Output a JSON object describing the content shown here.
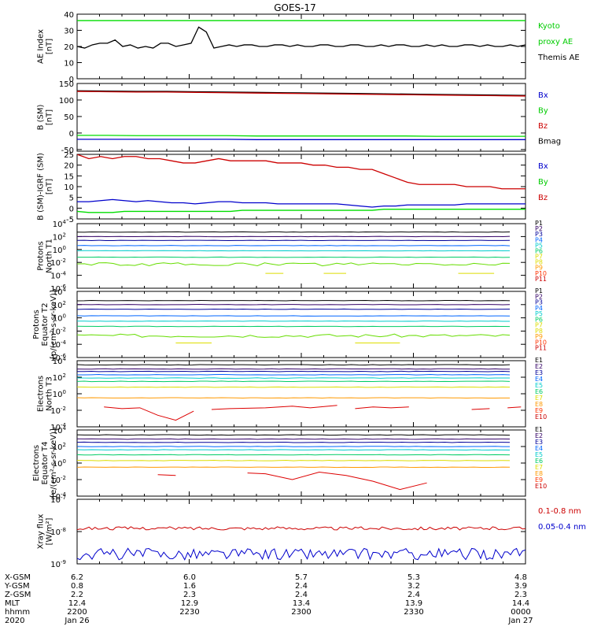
{
  "title": "GOES-17",
  "colors": {
    "black": "#000000",
    "green": "#00dd00",
    "red": "#cc0000",
    "blue": "#0000cc",
    "ch_P1": "#000000",
    "ch_P2": "#330066",
    "ch_P3": "#000099",
    "ch_P4": "#0066ff",
    "ch_P5": "#00cccc",
    "ch_P6": "#00cc66",
    "ch_P7": "#66dd00",
    "ch_P8": "#dddd00",
    "ch_P9": "#ff9900",
    "ch_P10": "#ff3300",
    "ch_P11": "#cc0000"
  },
  "chart_data": [
    {
      "type": "line",
      "ylabel": "AE Index\n[nT]",
      "ylim": [
        0,
        40
      ],
      "yticks": [
        "0",
        "10",
        "20",
        "30",
        "40"
      ],
      "legend": [
        {
          "text": "Kyoto",
          "color": "#00cc00"
        },
        {
          "text": "proxy AE",
          "color": "#00cc00"
        },
        {
          "text": "Themis AE",
          "color": "#000000"
        }
      ],
      "series": [
        {
          "name": "Kyoto proxy AE",
          "color": "#00dd00",
          "values": [
            36,
            36
          ]
        },
        {
          "name": "Themis AE",
          "color": "#000000",
          "values": [
            20,
            19,
            21,
            22,
            22,
            24,
            20,
            21,
            19,
            20,
            19,
            22,
            22,
            20,
            21,
            22,
            32,
            29,
            19,
            20,
            21,
            20,
            21,
            21,
            20,
            20,
            21,
            21,
            20,
            21,
            20,
            20,
            21,
            21,
            20,
            20,
            21,
            21,
            20,
            20,
            21,
            20,
            21,
            21,
            20,
            20,
            21,
            20,
            21,
            20,
            20,
            21,
            21,
            20,
            21,
            20,
            20,
            21,
            20,
            21
          ]
        }
      ]
    },
    {
      "type": "line",
      "ylabel": "B (SM)\n[nT]",
      "ylim": [
        -55,
        150
      ],
      "yticks": [
        "-50",
        "0",
        "50",
        "100",
        "150"
      ],
      "legend": [
        {
          "text": "Bx",
          "color": "#0000cc"
        },
        {
          "text": "By",
          "color": "#00cc00"
        },
        {
          "text": "Bz",
          "color": "#cc0000"
        },
        {
          "text": "Bmag",
          "color": "#000000"
        }
      ],
      "series": [
        {
          "name": "Bmag",
          "color": "#000000",
          "values": [
            128,
            127,
            126,
            126,
            125,
            124,
            123,
            122,
            121,
            120,
            119,
            118,
            117,
            116,
            115,
            114
          ]
        },
        {
          "name": "Bz",
          "color": "#cc0000",
          "values": [
            126,
            125,
            124,
            124,
            123,
            122,
            121,
            120,
            119,
            118,
            117,
            116,
            115,
            114,
            113,
            112
          ]
        },
        {
          "name": "By",
          "color": "#00dd00",
          "values": [
            -7,
            -7,
            -8,
            -8,
            -8,
            -8,
            -9,
            -9,
            -9,
            -9,
            -9,
            -9,
            -10,
            -10,
            -10,
            -10
          ]
        },
        {
          "name": "Bx",
          "color": "#0000cc",
          "values": [
            -19,
            -19,
            -19,
            -19,
            -19,
            -19,
            -20,
            -20,
            -20,
            -20,
            -20,
            -20,
            -20,
            -20,
            -20,
            -20
          ]
        }
      ]
    },
    {
      "type": "line",
      "ylabel": "B (SM)-IGRF (SM)\n[nT]",
      "ylim": [
        -5,
        25
      ],
      "yticks": [
        "-5",
        "0",
        "5",
        "10",
        "15",
        "20",
        "25"
      ],
      "legend": [
        {
          "text": "Bx",
          "color": "#0000cc"
        },
        {
          "text": "By",
          "color": "#00cc00"
        },
        {
          "text": "Bz",
          "color": "#cc0000"
        }
      ],
      "series": [
        {
          "name": "Bz",
          "color": "#cc0000",
          "values": [
            25,
            23,
            24,
            23,
            24,
            24,
            23,
            23,
            22,
            21,
            21,
            22,
            23,
            22,
            22,
            22,
            22,
            21,
            21,
            21,
            20,
            20,
            19,
            19,
            18,
            18,
            16,
            14,
            12,
            11,
            11,
            11,
            11,
            10,
            10,
            10,
            9,
            9,
            9
          ]
        },
        {
          "name": "Bx",
          "color": "#0000cc",
          "values": [
            3,
            3,
            3.5,
            4,
            3.5,
            3,
            3.5,
            3,
            2.5,
            2.5,
            2,
            2.5,
            3,
            3,
            2.5,
            2.5,
            2.5,
            2,
            2,
            2,
            2,
            2,
            2,
            1.5,
            1,
            0.5,
            1,
            1,
            1.5,
            1.5,
            1.5,
            1.5,
            1.5,
            2,
            2,
            2,
            2,
            2,
            2
          ]
        },
        {
          "name": "By",
          "color": "#00dd00",
          "values": [
            -1.5,
            -2,
            -2,
            -2,
            -1.5,
            -1.5,
            -1.5,
            -1.5,
            -1.5,
            -1.5,
            -1.5,
            -1.5,
            -1.5,
            -1.5,
            -1,
            -1,
            -1,
            -1,
            -1,
            -1,
            -1,
            -1,
            -1,
            -1,
            -1,
            -1,
            -0.5,
            -0.5,
            -0.5,
            -0.5,
            -0.5,
            -0.5,
            -0.5,
            -0.5,
            -0.5,
            -0.5,
            -0.5,
            -0.5,
            -0.5
          ]
        }
      ]
    },
    {
      "type": "line",
      "log": true,
      "ylabel": "Protons\nNorth T1",
      "ylim": [
        -6,
        4
      ],
      "yticks": [
        {
          "b": "10",
          "e": "4"
        },
        {
          "b": "10",
          "e": "2"
        },
        {
          "b": "10",
          "e": "0"
        },
        {
          "b": "10",
          "e": "-2"
        },
        {
          "b": "10",
          "e": "-4"
        },
        {
          "b": "10",
          "e": "-6"
        }
      ],
      "legend": [
        {
          "text": "P1",
          "color": "#000000"
        },
        {
          "text": "P2",
          "color": "#330066"
        },
        {
          "text": "P3",
          "color": "#000099"
        },
        {
          "text": "P4",
          "color": "#0066ff"
        },
        {
          "text": "P5",
          "color": "#00cccc"
        },
        {
          "text": "P6",
          "color": "#00cc66"
        },
        {
          "text": "P7",
          "color": "#dddd00"
        },
        {
          "text": "P8",
          "color": "#dddd00"
        },
        {
          "text": "P9",
          "color": "#ff9900"
        },
        {
          "text": "P10",
          "color": "#ff3300"
        },
        {
          "text": "P11",
          "color": "#cc0000"
        }
      ],
      "levels": [
        {
          "name": "P1",
          "color": "#000000",
          "value": 2.7
        },
        {
          "name": "P2",
          "color": "#330066",
          "value": 2.0
        },
        {
          "name": "P3",
          "color": "#000099",
          "value": 1.4
        },
        {
          "name": "P4",
          "color": "#0066ff",
          "value": 0.6
        },
        {
          "name": "P5",
          "color": "#00cccc",
          "value": -0.2
        },
        {
          "name": "P6",
          "color": "#00cc66",
          "value": -1.2
        },
        {
          "name": "P7",
          "color": "#66dd00",
          "value": -2.3,
          "jitter": true
        },
        {
          "name": "P8",
          "color": "#dddd00",
          "value": -3.7,
          "segments": [
            [
              0.42,
              0.46
            ],
            [
              0.55,
              0.6
            ],
            [
              0.85,
              0.93
            ]
          ]
        }
      ]
    },
    {
      "type": "line",
      "log": true,
      "ylabel": "Protons\nEquator T2\n[p/(cm²-s-sr-keV)]",
      "ylim": [
        -6,
        4
      ],
      "yticks": [
        {
          "b": "10",
          "e": "4"
        },
        {
          "b": "10",
          "e": "2"
        },
        {
          "b": "10",
          "e": "0"
        },
        {
          "b": "10",
          "e": "-2"
        },
        {
          "b": "10",
          "e": "-4"
        },
        {
          "b": "10",
          "e": "-6"
        }
      ],
      "legend": [
        {
          "text": "P1",
          "color": "#000000"
        },
        {
          "text": "P2",
          "color": "#330066"
        },
        {
          "text": "P3",
          "color": "#000099"
        },
        {
          "text": "P4",
          "color": "#0066ff"
        },
        {
          "text": "P5",
          "color": "#00cccc"
        },
        {
          "text": "P6",
          "color": "#00cc66"
        },
        {
          "text": "P7",
          "color": "#dddd00"
        },
        {
          "text": "P8",
          "color": "#dddd00"
        },
        {
          "text": "P9",
          "color": "#ff9900"
        },
        {
          "text": "P10",
          "color": "#ff3300"
        },
        {
          "text": "P11",
          "color": "#cc0000"
        }
      ],
      "levels": [
        {
          "name": "P1",
          "color": "#000000",
          "value": 2.6
        },
        {
          "name": "P2",
          "color": "#330066",
          "value": 2.0
        },
        {
          "name": "P3",
          "color": "#000099",
          "value": 1.3
        },
        {
          "name": "P4",
          "color": "#0066ff",
          "value": 0.3
        },
        {
          "name": "P5",
          "color": "#00cccc",
          "value": -0.5
        },
        {
          "name": "P6",
          "color": "#00cc66",
          "value": -1.3
        },
        {
          "name": "P7",
          "color": "#66dd00",
          "value": -2.7,
          "jitter": true
        },
        {
          "name": "P8",
          "color": "#dddd00",
          "value": -3.8,
          "segments": [
            [
              0.22,
              0.3
            ],
            [
              0.62,
              0.72
            ]
          ]
        }
      ]
    },
    {
      "type": "line",
      "log": true,
      "ylabel": "Electrons\nNorth T3",
      "ylim": [
        -4,
        4
      ],
      "yticks": [
        {
          "b": "10",
          "e": "4"
        },
        {
          "b": "10",
          "e": "2"
        },
        {
          "b": "10",
          "e": "0"
        },
        {
          "b": "10",
          "e": "-2"
        },
        {
          "b": "10",
          "e": "-4"
        }
      ],
      "legend": [
        {
          "text": "E1",
          "color": "#000000"
        },
        {
          "text": "E2",
          "color": "#330066"
        },
        {
          "text": "E3",
          "color": "#000099"
        },
        {
          "text": "E4",
          "color": "#0066ff"
        },
        {
          "text": "E5",
          "color": "#00cccc"
        },
        {
          "text": "E6",
          "color": "#00cc66"
        },
        {
          "text": "E7",
          "color": "#dddd00"
        },
        {
          "text": "E8",
          "color": "#ff9900"
        },
        {
          "text": "E9",
          "color": "#ff3300"
        },
        {
          "text": "E10",
          "color": "#cc0000"
        }
      ],
      "levels": [
        {
          "name": "E1",
          "color": "#000000",
          "value": 3.5
        },
        {
          "name": "E2",
          "color": "#330066",
          "value": 3.0
        },
        {
          "name": "E3",
          "color": "#000099",
          "value": 2.7
        },
        {
          "name": "E4",
          "color": "#0066ff",
          "value": 2.3
        },
        {
          "name": "E5",
          "color": "#00cccc",
          "value": 1.9
        },
        {
          "name": "E6",
          "color": "#00cc66",
          "value": 1.5
        },
        {
          "name": "E7",
          "color": "#dddd00",
          "value": 0.8
        },
        {
          "name": "E8",
          "color": "#ff9900",
          "value": -0.5
        }
      ],
      "red_trace": [
        [
          0.06,
          -1.6
        ],
        [
          0.1,
          -1.8
        ],
        [
          0.14,
          -1.7
        ],
        [
          0.18,
          -2.6
        ],
        [
          0.22,
          -3.2
        ],
        [
          0.26,
          -2.1
        ],
        null,
        [
          0.3,
          -1.9
        ],
        [
          0.34,
          -1.8
        ],
        [
          0.42,
          -1.7
        ],
        [
          0.48,
          -1.5
        ],
        [
          0.52,
          -1.7
        ],
        [
          0.58,
          -1.4
        ],
        null,
        [
          0.62,
          -1.8
        ],
        [
          0.66,
          -1.6
        ],
        [
          0.7,
          -1.7
        ],
        [
          0.74,
          -1.6
        ],
        null,
        [
          0.88,
          -1.9
        ],
        [
          0.92,
          -1.8
        ],
        null,
        [
          0.96,
          -1.7
        ],
        [
          0.99,
          -1.6
        ]
      ]
    },
    {
      "type": "line",
      "log": true,
      "ylabel": "Electrons\nEquator T4\n[e/(cm²-s-sr-keV)]",
      "ylim": [
        -4,
        4
      ],
      "yticks": [
        {
          "b": "10",
          "e": "4"
        },
        {
          "b": "10",
          "e": "2"
        },
        {
          "b": "10",
          "e": "0"
        },
        {
          "b": "10",
          "e": "-2"
        },
        {
          "b": "10",
          "e": "-4"
        }
      ],
      "legend": [
        {
          "text": "E1",
          "color": "#000000"
        },
        {
          "text": "E2",
          "color": "#330066"
        },
        {
          "text": "E3",
          "color": "#000099"
        },
        {
          "text": "E4",
          "color": "#0066ff"
        },
        {
          "text": "E5",
          "color": "#00cccc"
        },
        {
          "text": "E6",
          "color": "#00cc66"
        },
        {
          "text": "E7",
          "color": "#dddd00"
        },
        {
          "text": "E8",
          "color": "#ff9900"
        },
        {
          "text": "E9",
          "color": "#ff3300"
        },
        {
          "text": "E10",
          "color": "#cc0000"
        }
      ],
      "levels": [
        {
          "name": "E1",
          "color": "#000000",
          "value": 3.4
        },
        {
          "name": "E2",
          "color": "#330066",
          "value": 2.9
        },
        {
          "name": "E3",
          "color": "#000099",
          "value": 2.5
        },
        {
          "name": "E4",
          "color": "#0066ff",
          "value": 2.0
        },
        {
          "name": "E5",
          "color": "#00cccc",
          "value": 1.6
        },
        {
          "name": "E6",
          "color": "#00cc66",
          "value": 1.0
        },
        {
          "name": "E7",
          "color": "#dddd00",
          "value": 0.3
        },
        {
          "name": "E8",
          "color": "#ff9900",
          "value": -0.5
        }
      ],
      "red_trace": [
        [
          0.18,
          -1.4
        ],
        [
          0.22,
          -1.5
        ],
        null,
        [
          0.38,
          -1.2
        ],
        [
          0.42,
          -1.3
        ],
        [
          0.48,
          -2.0
        ],
        [
          0.54,
          -1.1
        ],
        [
          0.6,
          -1.5
        ],
        [
          0.66,
          -2.2
        ],
        [
          0.72,
          -3.2
        ],
        [
          0.78,
          -2.4
        ]
      ]
    },
    {
      "type": "line",
      "log": true,
      "ylabel": "Xray flux\n[W/m²]",
      "ylim": [
        -9,
        -7
      ],
      "yticks": [
        {
          "b": "10",
          "e": "-7"
        },
        {
          "b": "10",
          "e": "-8"
        },
        {
          "b": "10",
          "e": "-9"
        }
      ],
      "legend": [
        {
          "text": "0.1-0.8 nm",
          "color": "#cc0000"
        },
        {
          "text": "0.05-0.4 nm",
          "color": "#0000cc"
        }
      ],
      "series": [
        {
          "name": "0.1-0.8 nm",
          "color": "#cc0000",
          "center": -7.9,
          "amplitude": 0.05
        },
        {
          "name": "0.05-0.4 nm",
          "color": "#0000cc",
          "center": -8.7,
          "amplitude": 0.18
        }
      ]
    }
  ],
  "ephemeris": {
    "labels": [
      "X-GSM",
      "Y-GSM",
      "Z-GSM",
      "MLT",
      "hhmm",
      "2020"
    ],
    "columns": [
      {
        "values": [
          "6.2",
          "0.8",
          "2.2",
          "12.4",
          "2200",
          "Jan 26"
        ]
      },
      {
        "values": [
          "6.0",
          "1.6",
          "2.3",
          "12.9",
          "2230",
          ""
        ]
      },
      {
        "values": [
          "5.7",
          "2.4",
          "2.4",
          "13.4",
          "2300",
          ""
        ]
      },
      {
        "values": [
          "5.3",
          "3.2",
          "2.4",
          "13.9",
          "2330",
          ""
        ]
      },
      {
        "values": [
          "4.8",
          "3.9",
          "2.3",
          "14.4",
          "0000",
          "Jan 27"
        ]
      }
    ]
  }
}
